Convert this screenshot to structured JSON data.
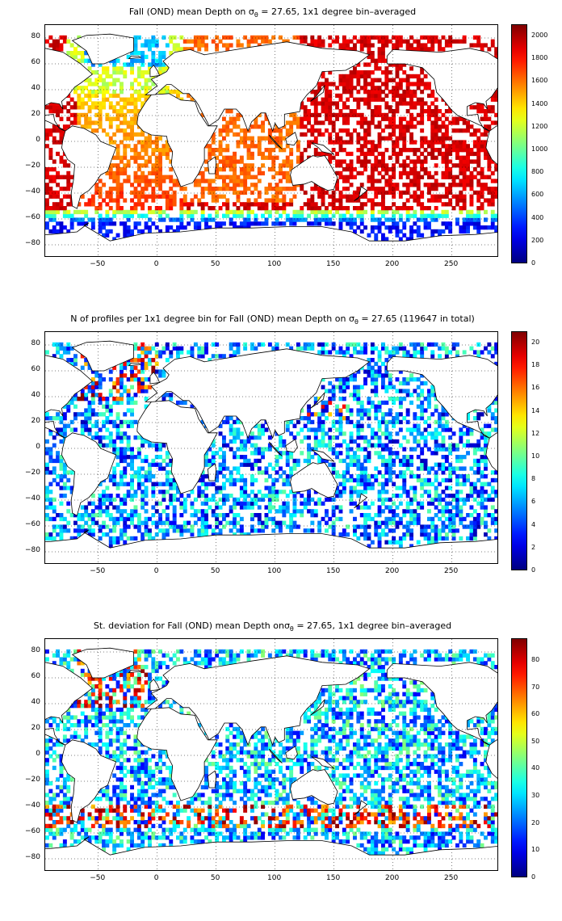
{
  "panels": [
    {
      "title_prefix": "Fall (OND) mean Depth on ",
      "title_sigma": "σ",
      "title_sub": "θ",
      "title_suffix": " = 27.65, 1x1 degree bin–averaged",
      "colorbar_ticks": [
        "0",
        "200",
        "400",
        "600",
        "800",
        "1000",
        "1200",
        "1400",
        "1600",
        "1800",
        "2000"
      ],
      "colorbar_range": [
        0,
        2100
      ]
    },
    {
      "title_prefix": "N of profiles per 1x1 degree bin for Fall (OND) mean Depth on ",
      "title_sigma": "σ",
      "title_sub": "θ",
      "title_suffix": " = 27.65 (119647 in total)",
      "colorbar_ticks": [
        "0",
        "2",
        "4",
        "6",
        "8",
        "10",
        "12",
        "14",
        "16",
        "18",
        "20"
      ],
      "colorbar_range": [
        0,
        21
      ]
    },
    {
      "title_prefix": "St. deviation for Fall (OND) mean Depth on",
      "title_sigma": "σ",
      "title_sub": "θ",
      "title_suffix": " = 27.65, 1x1 degree bin–averaged",
      "colorbar_ticks": [
        "0",
        "10",
        "20",
        "30",
        "40",
        "50",
        "60",
        "70",
        "80"
      ],
      "colorbar_range": [
        0,
        88
      ]
    }
  ],
  "axes": {
    "y_ticks": [
      "80",
      "60",
      "40",
      "20",
      "0",
      "−20",
      "−40",
      "−60",
      "−80"
    ],
    "x_ticks": [
      "−50",
      "0",
      "50",
      "100",
      "150",
      "200",
      "250"
    ],
    "lon_range": [
      -95,
      290
    ],
    "lat_range": [
      -90,
      90
    ]
  },
  "colormap": "jet"
}
